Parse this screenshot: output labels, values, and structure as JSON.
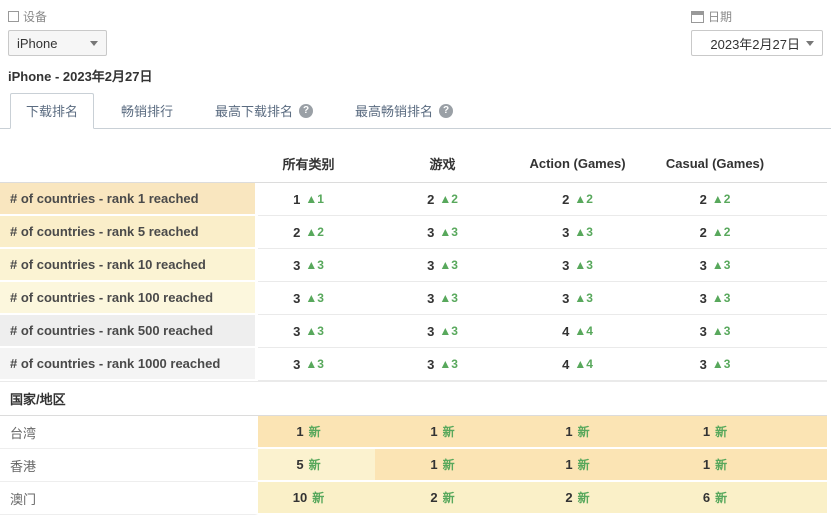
{
  "filters": {
    "device": {
      "label": "设备",
      "value": "iPhone"
    },
    "date": {
      "label": "日期",
      "value": "2023年2月27日"
    }
  },
  "subtitle": "iPhone - 2023年2月27日",
  "tabs": [
    {
      "label": "下载排名",
      "active": true,
      "help": false
    },
    {
      "label": "畅销排行",
      "active": false,
      "help": false
    },
    {
      "label": "最高下载排名",
      "active": false,
      "help": true
    },
    {
      "label": "最高畅销排名",
      "active": false,
      "help": true
    }
  ],
  "table": {
    "columns": [
      "所有类别",
      "游戏",
      "Action (Games)",
      "Casual (Games)"
    ],
    "metric_rows": [
      {
        "label": "# of countries - rank 1 reached",
        "label_bg": "#f9e6bf",
        "cells": [
          {
            "v": "1",
            "chg": "▲1"
          },
          {
            "v": "2",
            "chg": "▲2"
          },
          {
            "v": "2",
            "chg": "▲2"
          },
          {
            "v": "2",
            "chg": "▲2"
          }
        ]
      },
      {
        "label": "# of countries - rank 5 reached",
        "label_bg": "#faeec9",
        "cells": [
          {
            "v": "2",
            "chg": "▲2"
          },
          {
            "v": "3",
            "chg": "▲3"
          },
          {
            "v": "3",
            "chg": "▲3"
          },
          {
            "v": "2",
            "chg": "▲2"
          }
        ]
      },
      {
        "label": "# of countries - rank 10 reached",
        "label_bg": "#fbf3d3",
        "cells": [
          {
            "v": "3",
            "chg": "▲3"
          },
          {
            "v": "3",
            "chg": "▲3"
          },
          {
            "v": "3",
            "chg": "▲3"
          },
          {
            "v": "3",
            "chg": "▲3"
          }
        ]
      },
      {
        "label": "# of countries - rank 100 reached",
        "label_bg": "#fcf7dd",
        "cells": [
          {
            "v": "3",
            "chg": "▲3"
          },
          {
            "v": "3",
            "chg": "▲3"
          },
          {
            "v": "3",
            "chg": "▲3"
          },
          {
            "v": "3",
            "chg": "▲3"
          }
        ]
      },
      {
        "label": "# of countries - rank 500 reached",
        "label_bg": "#eeeeee",
        "cells": [
          {
            "v": "3",
            "chg": "▲3"
          },
          {
            "v": "3",
            "chg": "▲3"
          },
          {
            "v": "4",
            "chg": "▲4"
          },
          {
            "v": "3",
            "chg": "▲3"
          }
        ]
      },
      {
        "label": "# of countries - rank 1000 reached",
        "label_bg": "#f4f4f4",
        "cells": [
          {
            "v": "3",
            "chg": "▲3"
          },
          {
            "v": "3",
            "chg": "▲3"
          },
          {
            "v": "4",
            "chg": "▲4"
          },
          {
            "v": "3",
            "chg": "▲3"
          }
        ]
      }
    ],
    "section_label": "国家/地区",
    "country_rows": [
      {
        "label": "台湾",
        "cells": [
          {
            "v": "1",
            "chg": "新",
            "bg": "#fbe4b4"
          },
          {
            "v": "1",
            "chg": "新",
            "bg": "#fbe4b4"
          },
          {
            "v": "1",
            "chg": "新",
            "bg": "#fbe4b4"
          },
          {
            "v": "1",
            "chg": "新",
            "bg": "#fbe4b4"
          }
        ]
      },
      {
        "label": "香港",
        "cells": [
          {
            "v": "5",
            "chg": "新",
            "bg": "#fbf2cf"
          },
          {
            "v": "1",
            "chg": "新",
            "bg": "#fbe4b4"
          },
          {
            "v": "1",
            "chg": "新",
            "bg": "#fbe4b4"
          },
          {
            "v": "1",
            "chg": "新",
            "bg": "#fbe4b4"
          }
        ]
      },
      {
        "label": "澳门",
        "cells": [
          {
            "v": "10",
            "chg": "新",
            "bg": "#faf0c8"
          },
          {
            "v": "2",
            "chg": "新",
            "bg": "#faf0c8"
          },
          {
            "v": "2",
            "chg": "新",
            "bg": "#faf0c8"
          },
          {
            "v": "6",
            "chg": "新",
            "bg": "#faf0c8"
          }
        ]
      }
    ]
  },
  "colors": {
    "positive_green": "#58a85c",
    "rank1_highlight": "#fbe4b4",
    "light_highlight": "#faf0c8",
    "tab_border": "#c9d0d6"
  }
}
